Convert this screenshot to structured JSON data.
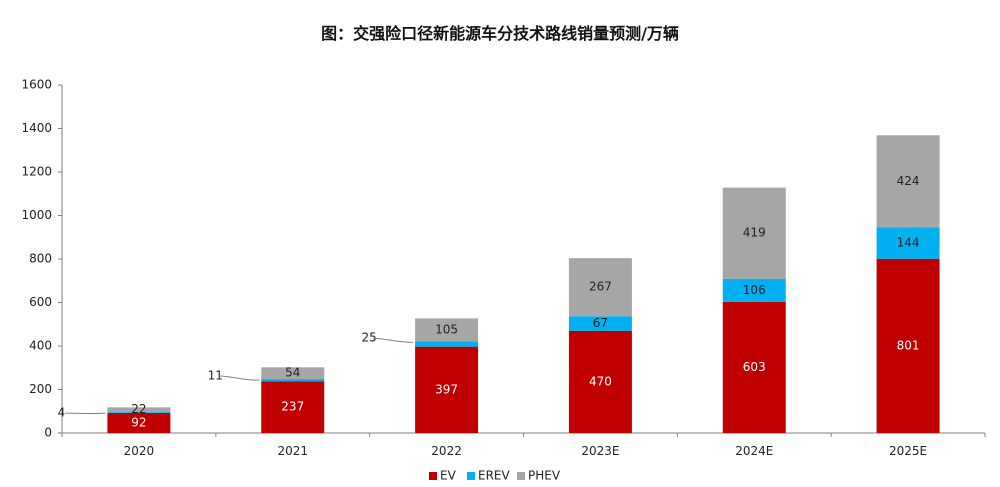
{
  "chart_data": {
    "type": "bar",
    "stacked": true,
    "title": "图：交强险口径新能源车分技术路线销量预测/万辆",
    "categories": [
      "2020",
      "2021",
      "2022",
      "2023E",
      "2024E",
      "2025E"
    ],
    "series": [
      {
        "name": "EV",
        "color": "#c00000",
        "label_color": "#ffffff",
        "values": [
          92,
          237,
          397,
          470,
          603,
          801
        ]
      },
      {
        "name": "EREV",
        "color": "#00b0f0",
        "label_color": "#222222",
        "values": [
          4,
          11,
          25,
          67,
          106,
          144
        ]
      },
      {
        "name": "PHEV",
        "color": "#a6a6a6",
        "label_color": "#222222",
        "values": [
          22,
          54,
          105,
          267,
          419,
          424
        ]
      }
    ],
    "ylim": [
      0,
      1600
    ],
    "yticks": [
      0,
      200,
      400,
      600,
      800,
      1000,
      1200,
      1400,
      1600
    ],
    "legend": "bottom",
    "grid": false
  }
}
